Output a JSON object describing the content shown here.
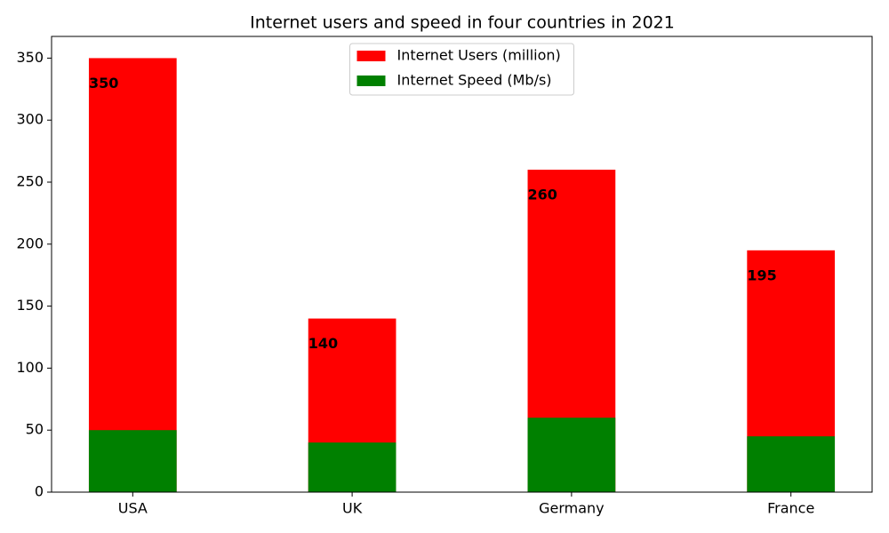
{
  "chart_data": {
    "type": "bar",
    "title": "Internet users and speed in four countries in 2021",
    "categories": [
      "USA",
      "UK",
      "Germany",
      "France"
    ],
    "series": [
      {
        "name": "Internet Users (million)",
        "color": "#ff0000",
        "values": [
          350,
          140,
          260,
          195
        ]
      },
      {
        "name": "Internet Speed (Mb/s)",
        "color": "#008000",
        "values": [
          50,
          40,
          60,
          45
        ]
      }
    ],
    "ylim": [
      0,
      367.5
    ],
    "yticks": [
      0,
      50,
      100,
      150,
      200,
      250,
      300,
      350
    ],
    "grid": false,
    "legend": "upper center"
  }
}
